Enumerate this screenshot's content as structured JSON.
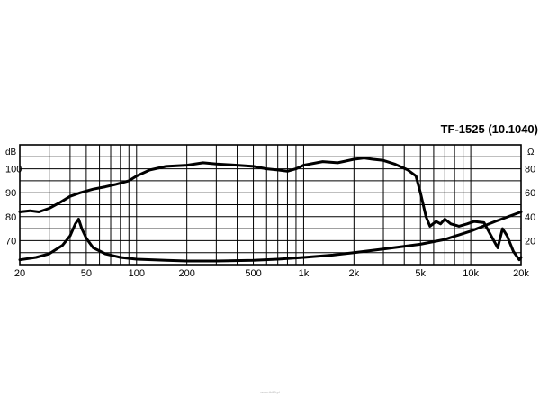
{
  "chart_data": {
    "type": "line",
    "title": "TF-1525 (10.1040)",
    "x_scale": "log",
    "xlim": [
      20,
      20000
    ],
    "x_ticks": [
      20,
      50,
      100,
      200,
      500,
      1000,
      2000,
      5000,
      10000,
      20000
    ],
    "x_tick_labels": [
      "20",
      "50",
      "100",
      "200",
      "500",
      "1k",
      "2k",
      "5k",
      "10k",
      "20k"
    ],
    "y_left": {
      "unit": "dB",
      "lim": [
        60,
        110
      ],
      "ticks": [
        70,
        80,
        90,
        100
      ],
      "tick_labels": [
        "70",
        "80",
        "90",
        "100"
      ]
    },
    "y_right": {
      "unit": "Ω",
      "lim": [
        0,
        100
      ],
      "ticks": [
        20,
        40,
        60,
        80
      ],
      "tick_labels": [
        "20",
        "40",
        "60",
        "80"
      ]
    },
    "grid": true,
    "series": [
      {
        "axis": "left",
        "points": [
          [
            20,
            82
          ],
          [
            23,
            82.5
          ],
          [
            26,
            82
          ],
          [
            30,
            83.5
          ],
          [
            35,
            86
          ],
          [
            40,
            88.5
          ],
          [
            46,
            90
          ],
          [
            55,
            91.5
          ],
          [
            65,
            92.5
          ],
          [
            75,
            93.5
          ],
          [
            90,
            95
          ],
          [
            100,
            97
          ],
          [
            120,
            99.5
          ],
          [
            150,
            101
          ],
          [
            200,
            101.5
          ],
          [
            250,
            102.5
          ],
          [
            300,
            102
          ],
          [
            400,
            101.5
          ],
          [
            500,
            101
          ],
          [
            600,
            100
          ],
          [
            700,
            99.5
          ],
          [
            800,
            99
          ],
          [
            900,
            100
          ],
          [
            1000,
            101.5
          ],
          [
            1300,
            103
          ],
          [
            1600,
            102.5
          ],
          [
            2000,
            104
          ],
          [
            2300,
            104.5
          ],
          [
            2600,
            104
          ],
          [
            3000,
            103.5
          ],
          [
            3500,
            102
          ],
          [
            4200,
            99.5
          ],
          [
            4700,
            97
          ],
          [
            5000,
            90
          ],
          [
            5400,
            80
          ],
          [
            5700,
            76
          ],
          [
            6200,
            78
          ],
          [
            6600,
            77
          ],
          [
            7000,
            79
          ],
          [
            7600,
            77
          ],
          [
            8500,
            76
          ],
          [
            9500,
            77
          ],
          [
            10500,
            78
          ],
          [
            12000,
            77.5
          ],
          [
            13000,
            73
          ],
          [
            14000,
            69
          ],
          [
            14500,
            67
          ],
          [
            15500,
            75
          ],
          [
            16500,
            72
          ],
          [
            18000,
            65.5
          ],
          [
            19500,
            62
          ],
          [
            20000,
            63
          ]
        ]
      },
      {
        "axis": "right",
        "points": [
          [
            20,
            4
          ],
          [
            25,
            6
          ],
          [
            30,
            9
          ],
          [
            36,
            16
          ],
          [
            40,
            24
          ],
          [
            43,
            34
          ],
          [
            45,
            38
          ],
          [
            47,
            30
          ],
          [
            50,
            22
          ],
          [
            55,
            14
          ],
          [
            65,
            9
          ],
          [
            80,
            6
          ],
          [
            100,
            4.5
          ],
          [
            150,
            3.5
          ],
          [
            200,
            3
          ],
          [
            300,
            3
          ],
          [
            500,
            3.5
          ],
          [
            700,
            4.5
          ],
          [
            1000,
            6
          ],
          [
            1500,
            8
          ],
          [
            2000,
            10
          ],
          [
            3000,
            13
          ],
          [
            5000,
            17
          ],
          [
            7000,
            21
          ],
          [
            10000,
            28
          ],
          [
            14000,
            36
          ],
          [
            20000,
            44
          ]
        ]
      }
    ]
  },
  "footer": {
    "text": "www.tb68.pl"
  }
}
